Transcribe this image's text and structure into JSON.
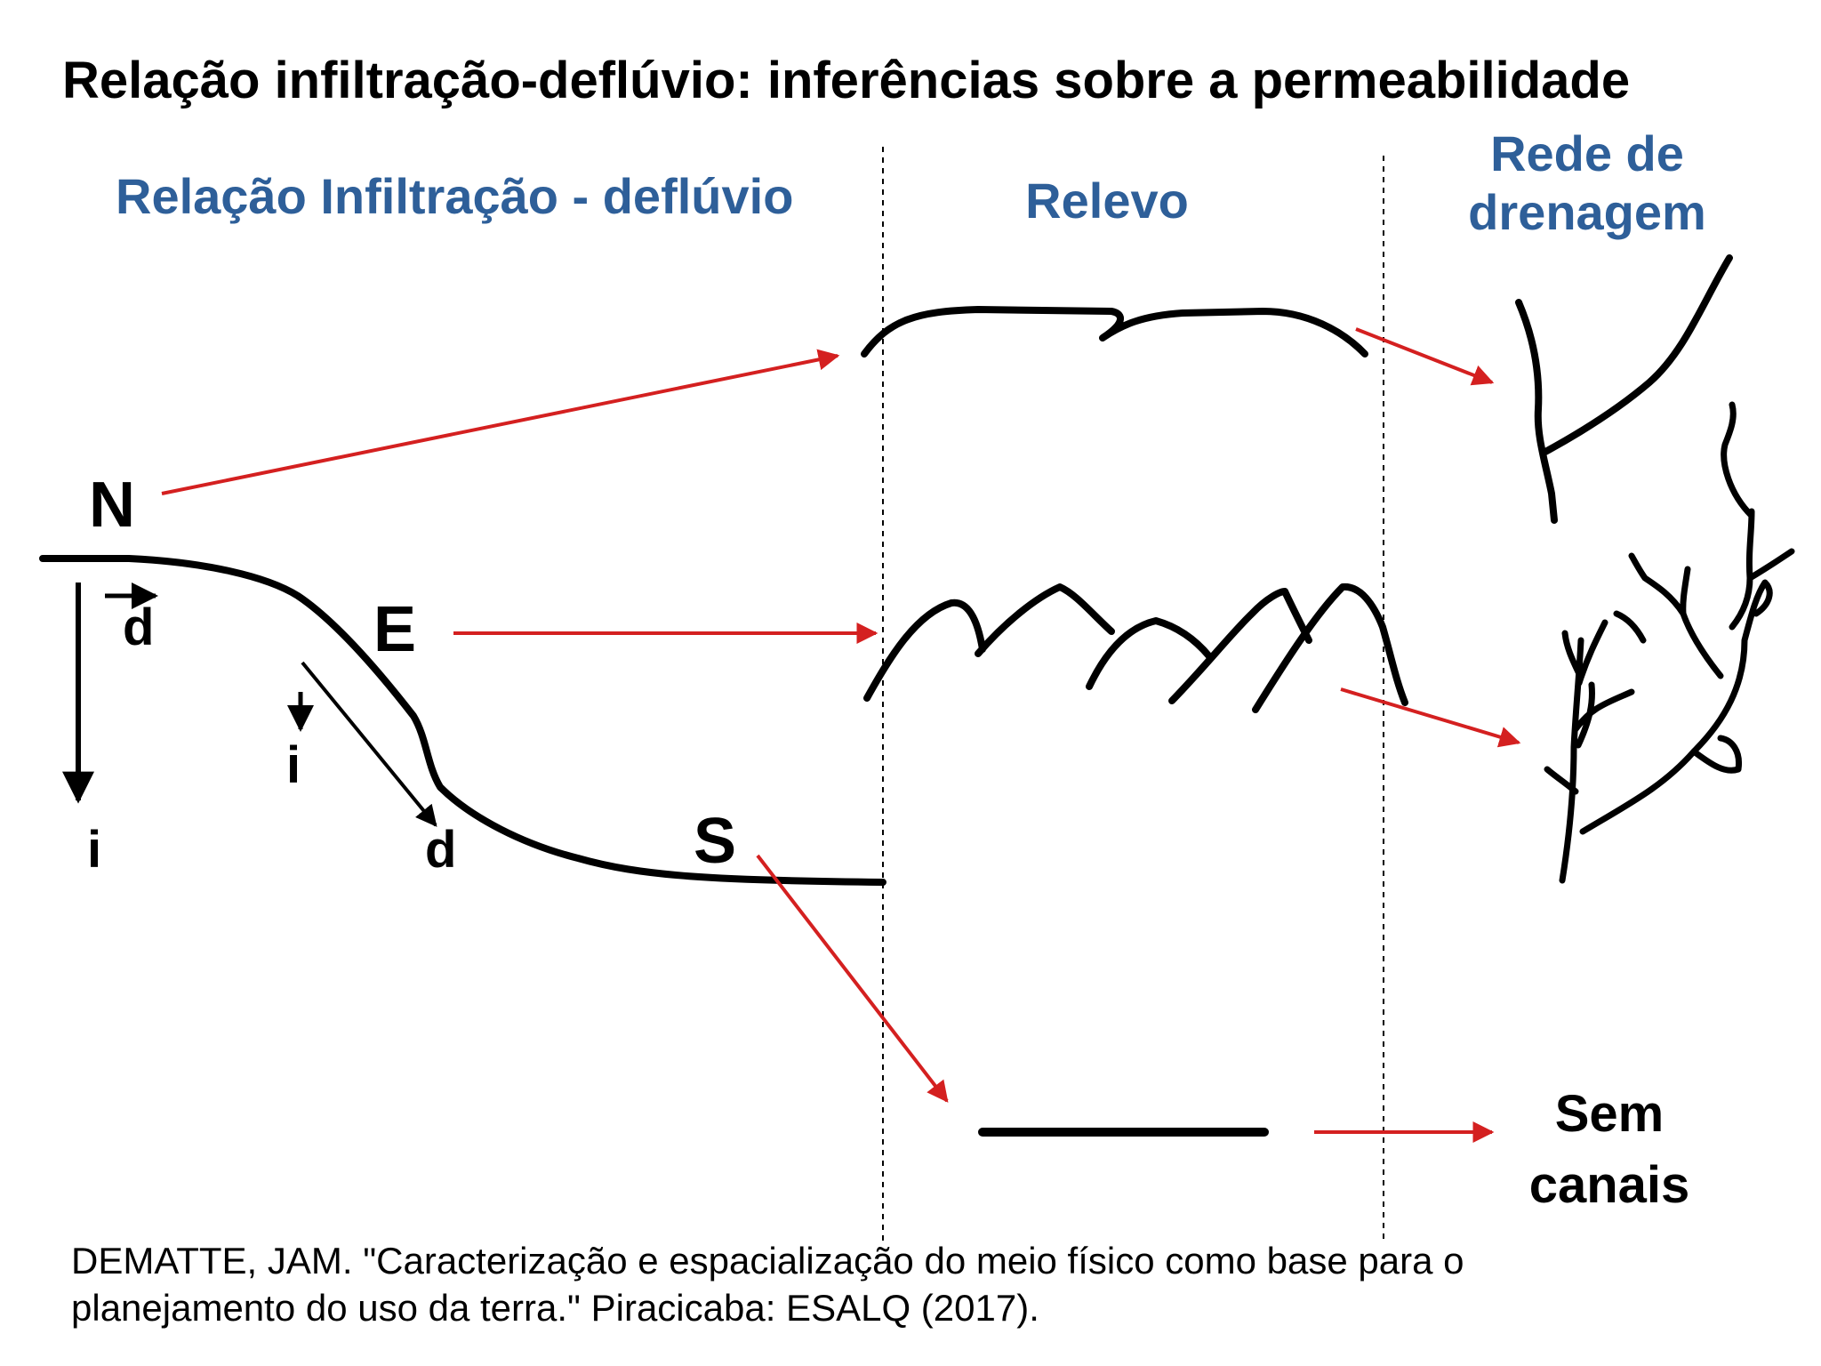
{
  "title": "Relação infiltração-deflúvio: inferências sobre a permeabilidade",
  "columns": {
    "infiltration": "Relação Infiltração - deflúvio",
    "relief": "Relevo",
    "drainage_line1": "Rede de",
    "drainage_line2": "drenagem"
  },
  "profile_labels": {
    "n": "N",
    "e": "E",
    "s": "S",
    "d": "d",
    "i": "i"
  },
  "no_channels": {
    "line1": "Sem",
    "line2": "canais"
  },
  "citation": {
    "line1": "DEMATTE, JAM. \"Caracterização e espacialização do meio físico como base para o",
    "line2": "planejamento do uso da terra.\" Piracicaba: ESALQ (2017)."
  },
  "colors": {
    "title": "#000000",
    "section_heading": "#2e5f99",
    "arrow": "#d42020",
    "line": "#000000"
  }
}
